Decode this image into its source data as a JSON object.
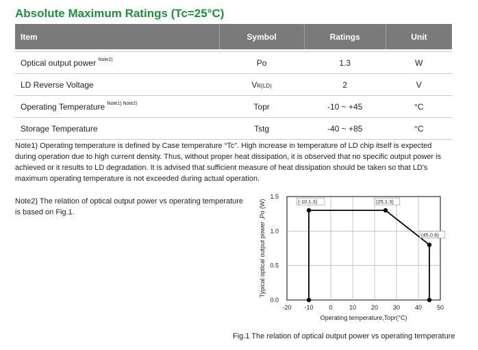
{
  "title": "Absolute Maximum Ratings (Tc=25°C)",
  "table": {
    "headers": [
      "Item",
      "Symbol",
      "Ratings",
      "Unit"
    ],
    "rows": [
      {
        "item": "Optical output power ",
        "note": "Note2)",
        "symbol_main": "Po",
        "symbol_sub": "",
        "rating": "1.3",
        "unit": "W"
      },
      {
        "item": "LD Reverse Voltage",
        "note": "",
        "symbol_main": "V",
        "symbol_sub": "R(LD)",
        "rating": "2",
        "unit": "V"
      },
      {
        "item": "Operating Temperature ",
        "note": "Note1) Note2)",
        "symbol_main": "Topr",
        "symbol_sub": "",
        "rating": "-10 ~ +45",
        "unit": "°C"
      },
      {
        "item": "Storage Temperature",
        "note": "",
        "symbol_main": "Tstg",
        "symbol_sub": "",
        "rating": "-40 ~ +85",
        "unit": "°C"
      }
    ]
  },
  "note1": "Note1) Operating temperature is defined by Case temperature “Tc”. High increase in temperature of LD chip itself is expected during operation due to high current density. Thus, without proper heat dissipation, it is observed that no specific output power is achieved or it results to LD degradation. It is advised that sufficient measure of heat dissipation should be taken so that LD's maximum operating temperature is not exceeded during actual operation.",
  "note2": "Note2) The relation of optical output power vs operating temperature is based on Fig.1.",
  "caption": "Fig.1 The relation of optical output power vs operating temperature",
  "chart_data": {
    "type": "line",
    "title": "",
    "xlabel": "Operating temperature,Topr(°C)",
    "ylabel": "Typical optical output power ,Po (W)",
    "xlim": [
      -20,
      50
    ],
    "ylim": [
      0.0,
      1.5
    ],
    "x_ticks": [
      -20,
      -10,
      0,
      10,
      20,
      30,
      40,
      50
    ],
    "x_tick_labels": [
      "-20",
      "-10",
      "0",
      "10",
      "20",
      "30",
      "40",
      "50"
    ],
    "y_ticks": [
      0.0,
      0.5,
      1.0,
      1.5
    ],
    "y_tick_labels": [
      "0.0",
      "0.5",
      "1.0",
      "1.5"
    ],
    "grid": true,
    "series": [
      {
        "x": [
          -10,
          -10,
          25,
          45,
          45
        ],
        "y": [
          0.0,
          1.3,
          1.3,
          0.8,
          0.0
        ]
      }
    ],
    "points": [
      {
        "x": -10,
        "y": 0.0
      },
      {
        "x": -10,
        "y": 1.3
      },
      {
        "x": 25,
        "y": 1.3
      },
      {
        "x": 45,
        "y": 0.8
      },
      {
        "x": 45,
        "y": 0.0
      }
    ],
    "annotations": [
      {
        "x": -10,
        "y": 1.3,
        "text": "(-10,1.3)"
      },
      {
        "x": 25,
        "y": 1.3,
        "text": "(25,1.3)"
      },
      {
        "x": 45,
        "y": 0.8,
        "text": "(45,0.8)"
      }
    ],
    "line_color": "#000000",
    "grid_color": "#a0a0a0"
  }
}
